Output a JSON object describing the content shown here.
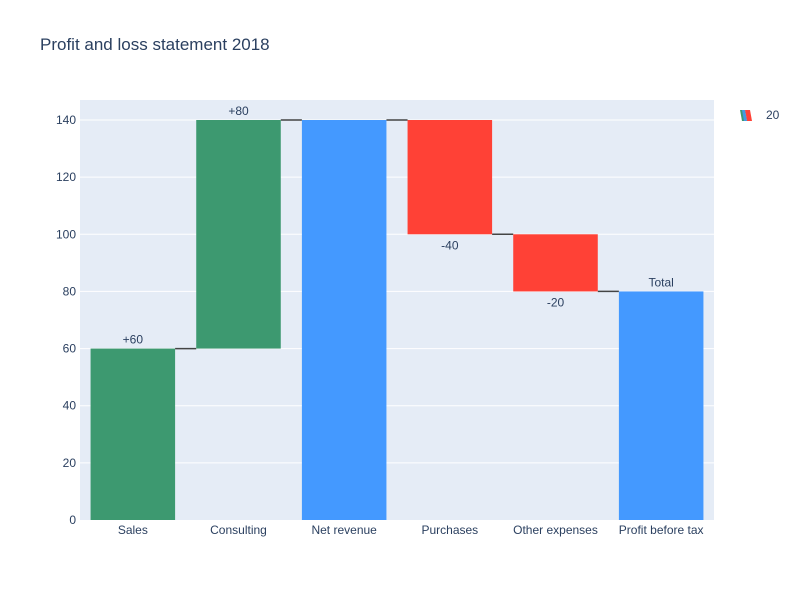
{
  "chart_data": {
    "type": "waterfall",
    "title": "Profit and loss statement 2018",
    "categories": [
      "Sales",
      "Consulting",
      "Net revenue",
      "Purchases",
      "Other expenses",
      "Profit before tax"
    ],
    "measures": [
      "relative",
      "relative",
      "total",
      "relative",
      "relative",
      "total"
    ],
    "values": [
      60,
      80,
      0,
      -40,
      -20,
      0
    ],
    "data_labels": [
      "+60",
      "+80",
      "",
      "-40",
      "-20",
      "Total"
    ],
    "ylim": [
      0,
      147
    ],
    "yticks": [
      0,
      20,
      40,
      60,
      80,
      100,
      120,
      140
    ],
    "grid": true,
    "colors": {
      "increasing": "#3d9970",
      "decreasing": "#ff4136",
      "total": "#4499ff",
      "plot_bg": "#e5ecf6",
      "connector": "#444444"
    },
    "legend": {
      "position": "top-right",
      "entries": [
        "20"
      ]
    }
  }
}
